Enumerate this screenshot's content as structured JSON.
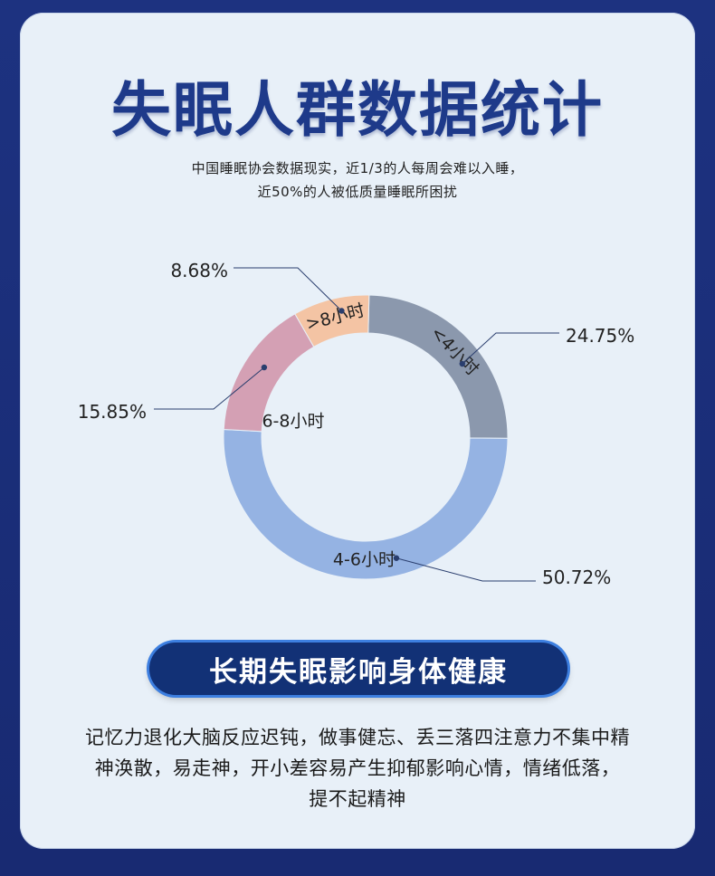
{
  "title": "失眠人群数据统计",
  "subtitle": {
    "line1": "中国睡眠协会数据现实，近1/3的人每周会难以入睡，",
    "line2": "近50%的人被低质量睡眠所困扰"
  },
  "chart_data": {
    "type": "pie",
    "style": "donut",
    "title": "",
    "slices": [
      {
        "label": "<4小时",
        "value": 24.75,
        "value_label": "24.75%",
        "color": "#8b98ad"
      },
      {
        "label": "4-6小时",
        "value": 50.72,
        "value_label": "50.72%",
        "color": "#95b3e3"
      },
      {
        "label": "6-8小时",
        "value": 15.85,
        "value_label": "15.85%",
        "color": "#d4a0b4"
      },
      {
        "label": ">8小时",
        "value": 8.68,
        "value_label": "8.68%",
        "color": "#f4c4a4"
      }
    ]
  },
  "banner": {
    "label": "长期失眠影响身体健康"
  },
  "body": {
    "line1": "记忆力退化大脑反应迟钝，做事健忘、丢三落四注意力不集中精",
    "line2": "神涣散，易走神，开小差容易产生抑郁影响心情，情绪低落，",
    "line3": "提不起精神"
  }
}
